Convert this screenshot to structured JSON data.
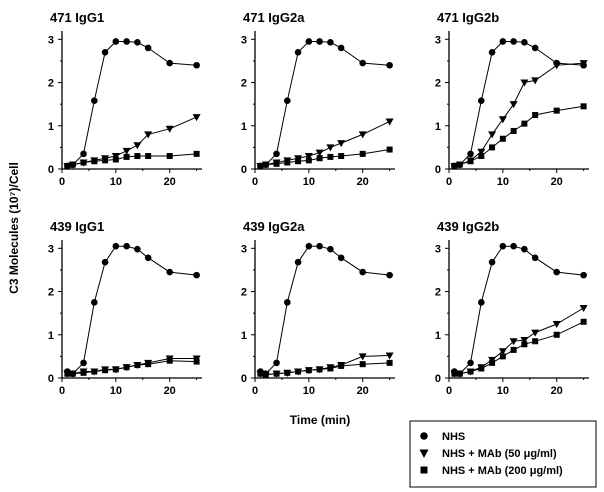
{
  "figure": {
    "ylabel": "C3 Molecules (10⁷)/Cell",
    "xlabel": "Time (min)"
  },
  "legend": {
    "entries": [
      {
        "label": "NHS",
        "marker": "circle-icon"
      },
      {
        "label": "NHS + MAb (50 μg/ml)",
        "marker": "triangle-down-icon"
      },
      {
        "label": "NHS + MAb (200 μg/ml)",
        "marker": "square-icon"
      }
    ]
  },
  "chart_data": [
    {
      "type": "line",
      "title": "471 IgG1",
      "xlim": [
        0,
        26
      ],
      "ylim": [
        0,
        3.1
      ],
      "xticks": [
        0,
        10,
        20
      ],
      "yticks": [
        0,
        1,
        2,
        3
      ],
      "series": [
        {
          "name": "NHS",
          "x": [
            1,
            2,
            4,
            6,
            8,
            10,
            12,
            14,
            16,
            20,
            25
          ],
          "y": [
            0.07,
            0.1,
            0.35,
            1.58,
            2.7,
            2.95,
            2.95,
            2.93,
            2.8,
            2.45,
            2.4
          ]
        },
        {
          "name": "NHS + MAb (50 μg/ml)",
          "x": [
            1,
            2,
            4,
            6,
            8,
            10,
            12,
            14,
            16,
            20,
            25
          ],
          "y": [
            0.07,
            0.1,
            0.15,
            0.2,
            0.25,
            0.3,
            0.42,
            0.55,
            0.8,
            0.93,
            1.2
          ]
        },
        {
          "name": "NHS + MAb (200 μg/ml)",
          "x": [
            1,
            2,
            4,
            6,
            8,
            10,
            12,
            14,
            16,
            20,
            25
          ],
          "y": [
            0.07,
            0.1,
            0.15,
            0.18,
            0.2,
            0.22,
            0.28,
            0.3,
            0.3,
            0.3,
            0.35
          ]
        }
      ]
    },
    {
      "type": "line",
      "title": "471 IgG2a",
      "xlim": [
        0,
        26
      ],
      "ylim": [
        0,
        3.1
      ],
      "xticks": [
        0,
        10,
        20
      ],
      "yticks": [
        0,
        1,
        2,
        3
      ],
      "series": [
        {
          "name": "NHS",
          "x": [
            1,
            2,
            4,
            6,
            8,
            10,
            12,
            14,
            16,
            20,
            25
          ],
          "y": [
            0.07,
            0.1,
            0.35,
            1.58,
            2.7,
            2.95,
            2.95,
            2.93,
            2.8,
            2.45,
            2.4
          ]
        },
        {
          "name": "NHS + MAb (50 μg/ml)",
          "x": [
            1,
            2,
            4,
            6,
            8,
            10,
            12,
            14,
            16,
            20,
            25
          ],
          "y": [
            0.07,
            0.1,
            0.15,
            0.2,
            0.25,
            0.3,
            0.38,
            0.5,
            0.6,
            0.8,
            1.1
          ]
        },
        {
          "name": "NHS + MAb (200 μg/ml)",
          "x": [
            1,
            2,
            4,
            6,
            8,
            10,
            12,
            14,
            16,
            20,
            25
          ],
          "y": [
            0.07,
            0.1,
            0.12,
            0.15,
            0.18,
            0.2,
            0.25,
            0.28,
            0.3,
            0.35,
            0.45
          ]
        }
      ]
    },
    {
      "type": "line",
      "title": "471 IgG2b",
      "xlim": [
        0,
        26
      ],
      "ylim": [
        0,
        3.1
      ],
      "xticks": [
        0,
        10,
        20
      ],
      "yticks": [
        0,
        1,
        2,
        3
      ],
      "series": [
        {
          "name": "NHS",
          "x": [
            1,
            2,
            4,
            6,
            8,
            10,
            12,
            14,
            16,
            20,
            25
          ],
          "y": [
            0.07,
            0.1,
            0.35,
            1.58,
            2.7,
            2.95,
            2.95,
            2.93,
            2.8,
            2.45,
            2.4
          ]
        },
        {
          "name": "NHS + MAb (50 μg/ml)",
          "x": [
            1,
            2,
            4,
            6,
            8,
            10,
            12,
            14,
            16,
            20,
            25
          ],
          "y": [
            0.07,
            0.1,
            0.2,
            0.4,
            0.8,
            1.15,
            1.5,
            2.0,
            2.05,
            2.4,
            2.45
          ]
        },
        {
          "name": "NHS + MAb (200 μg/ml)",
          "x": [
            1,
            2,
            4,
            6,
            8,
            10,
            12,
            14,
            16,
            20,
            25
          ],
          "y": [
            0.07,
            0.1,
            0.18,
            0.3,
            0.5,
            0.7,
            0.88,
            1.05,
            1.25,
            1.35,
            1.45
          ]
        }
      ]
    },
    {
      "type": "line",
      "title": "439 IgG1",
      "xlim": [
        0,
        26
      ],
      "ylim": [
        0,
        3.1
      ],
      "xticks": [
        0,
        10,
        20
      ],
      "yticks": [
        0,
        1,
        2,
        3
      ],
      "series": [
        {
          "name": "NHS",
          "x": [
            1,
            2,
            4,
            6,
            8,
            10,
            12,
            14,
            16,
            20,
            25
          ],
          "y": [
            0.15,
            0.1,
            0.35,
            1.75,
            2.68,
            3.05,
            3.05,
            2.98,
            2.78,
            2.45,
            2.38
          ]
        },
        {
          "name": "NHS + MAb (50 μg/ml)",
          "x": [
            1,
            2,
            4,
            6,
            8,
            10,
            12,
            14,
            16,
            20,
            25
          ],
          "y": [
            0.1,
            0.1,
            0.15,
            0.15,
            0.2,
            0.2,
            0.25,
            0.3,
            0.35,
            0.45,
            0.45
          ]
        },
        {
          "name": "NHS + MAb (200 μg/ml)",
          "x": [
            1,
            2,
            4,
            6,
            8,
            10,
            12,
            14,
            16,
            20,
            25
          ],
          "y": [
            0.1,
            0.1,
            0.12,
            0.15,
            0.18,
            0.2,
            0.25,
            0.3,
            0.32,
            0.4,
            0.38
          ]
        }
      ]
    },
    {
      "type": "line",
      "title": "439 IgG2a",
      "xlim": [
        0,
        26
      ],
      "ylim": [
        0,
        3.1
      ],
      "xticks": [
        0,
        10,
        20
      ],
      "yticks": [
        0,
        1,
        2,
        3
      ],
      "series": [
        {
          "name": "NHS",
          "x": [
            1,
            2,
            4,
            6,
            8,
            10,
            12,
            14,
            16,
            20,
            25
          ],
          "y": [
            0.15,
            0.1,
            0.35,
            1.75,
            2.68,
            3.05,
            3.05,
            2.98,
            2.78,
            2.45,
            2.38
          ]
        },
        {
          "name": "NHS + MAb (50 μg/ml)",
          "x": [
            1,
            2,
            4,
            6,
            8,
            10,
            12,
            14,
            16,
            20,
            25
          ],
          "y": [
            0.1,
            0.08,
            0.1,
            0.12,
            0.15,
            0.18,
            0.2,
            0.25,
            0.3,
            0.5,
            0.52
          ]
        },
        {
          "name": "NHS + MAb (200 μg/ml)",
          "x": [
            1,
            2,
            4,
            6,
            8,
            10,
            12,
            14,
            16,
            20,
            25
          ],
          "y": [
            0.1,
            0.08,
            0.1,
            0.12,
            0.15,
            0.18,
            0.2,
            0.22,
            0.28,
            0.32,
            0.35
          ]
        }
      ]
    },
    {
      "type": "line",
      "title": "439 IgG2b",
      "xlim": [
        0,
        26
      ],
      "ylim": [
        0,
        3.1
      ],
      "xticks": [
        0,
        10,
        20
      ],
      "yticks": [
        0,
        1,
        2,
        3
      ],
      "series": [
        {
          "name": "NHS",
          "x": [
            1,
            2,
            4,
            6,
            8,
            10,
            12,
            14,
            16,
            20,
            25
          ],
          "y": [
            0.15,
            0.1,
            0.35,
            1.75,
            2.68,
            3.05,
            3.05,
            2.98,
            2.78,
            2.45,
            2.38
          ]
        },
        {
          "name": "NHS + MAb (50 μg/ml)",
          "x": [
            1,
            2,
            4,
            6,
            8,
            10,
            12,
            14,
            16,
            20,
            25
          ],
          "y": [
            0.1,
            0.1,
            0.15,
            0.25,
            0.42,
            0.62,
            0.85,
            0.88,
            1.05,
            1.25,
            1.62
          ]
        },
        {
          "name": "NHS + MAb (200 μg/ml)",
          "x": [
            1,
            2,
            4,
            6,
            8,
            10,
            12,
            14,
            16,
            20,
            25
          ],
          "y": [
            0.1,
            0.1,
            0.15,
            0.22,
            0.35,
            0.5,
            0.65,
            0.78,
            0.85,
            1.0,
            1.3
          ]
        }
      ]
    }
  ]
}
